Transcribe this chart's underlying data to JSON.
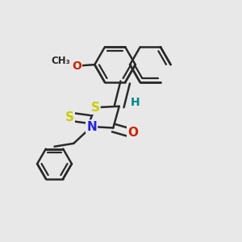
{
  "bg_color": "#e8e8e8",
  "bond_color": "#2a2a2a",
  "bond_width": 1.8,
  "figsize": [
    3.0,
    3.0
  ],
  "dpi": 100,
  "colors": {
    "S": "#cccc00",
    "N": "#2222dd",
    "O": "#cc2200",
    "H": "#008888",
    "C": "#2a2a2a"
  }
}
